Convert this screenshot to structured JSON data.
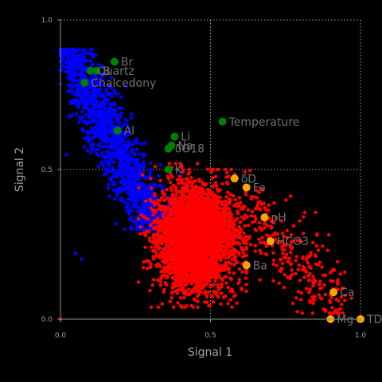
{
  "chart_data": {
    "type": "scatter",
    "title": "",
    "xlabel": "Signal 1",
    "ylabel": "Signal 2",
    "xlim": [
      0,
      1
    ],
    "ylim": [
      0,
      1
    ],
    "xticks": [
      "0.0",
      "0.5",
      "1.0"
    ],
    "yticks": [
      "0.0",
      "0.5",
      "1.0"
    ],
    "grid": true,
    "background": "#000000",
    "text_color": "#a0a0a0",
    "point_clouds": [
      {
        "color": "#0000ff",
        "description_points": [
          [
            0.0,
            0.88
          ],
          [
            0.02,
            0.55
          ],
          [
            0.1,
            0.6
          ],
          [
            0.2,
            0.4
          ],
          [
            0.3,
            0.5
          ],
          [
            0.4,
            0.48
          ],
          [
            0.05,
            0.22
          ],
          [
            0.07,
            0.2
          ]
        ]
      },
      {
        "color": "#ff0000",
        "description_points": [
          [
            0.3,
            0.47
          ],
          [
            0.45,
            0.3
          ],
          [
            0.55,
            0.5
          ],
          [
            0.6,
            0.3
          ],
          [
            0.75,
            0.25
          ],
          [
            0.9,
            0.08
          ],
          [
            0.97,
            0.07
          ],
          [
            0.4,
            0.1
          ],
          [
            0.0,
            0.0
          ]
        ]
      }
    ],
    "labeled_points": [
      {
        "label": "Br",
        "x": 0.18,
        "y": 0.86,
        "color": "#008000"
      },
      {
        "label": "B",
        "x": 0.12,
        "y": 0.83,
        "color": "#008000"
      },
      {
        "label": "Quartz",
        "x": 0.1,
        "y": 0.83,
        "color": "#008000"
      },
      {
        "label": "Chalcedony",
        "x": 0.08,
        "y": 0.79,
        "color": "#008000"
      },
      {
        "label": "Al",
        "x": 0.19,
        "y": 0.63,
        "color": "#008000"
      },
      {
        "label": "Na",
        "x": 0.37,
        "y": 0.58,
        "color": "#008000"
      },
      {
        "label": "Li",
        "x": 0.38,
        "y": 0.61,
        "color": "#008000"
      },
      {
        "label": "δO18",
        "x": 0.36,
        "y": 0.57,
        "color": "#008000"
      },
      {
        "label": "K",
        "x": 0.36,
        "y": 0.5,
        "color": "#008000"
      },
      {
        "label": "Temperature",
        "x": 0.54,
        "y": 0.66,
        "color": "#008000"
      },
      {
        "label": "δD",
        "x": 0.58,
        "y": 0.47,
        "color": "#ffa500"
      },
      {
        "label": "Fe",
        "x": 0.62,
        "y": 0.44,
        "color": "#ffa500"
      },
      {
        "label": "pH",
        "x": 0.68,
        "y": 0.34,
        "color": "#ffa500"
      },
      {
        "label": "HCO3",
        "x": 0.7,
        "y": 0.26,
        "color": "#ffa500"
      },
      {
        "label": "Ba",
        "x": 0.62,
        "y": 0.18,
        "color": "#ffa500"
      },
      {
        "label": "Ca",
        "x": 0.91,
        "y": 0.09,
        "color": "#ffa500"
      },
      {
        "label": "Mg",
        "x": 0.9,
        "y": 0.0,
        "color": "#ffa500"
      },
      {
        "label": "TDS",
        "x": 1.0,
        "y": 0.0,
        "color": "#ffa500"
      }
    ]
  }
}
